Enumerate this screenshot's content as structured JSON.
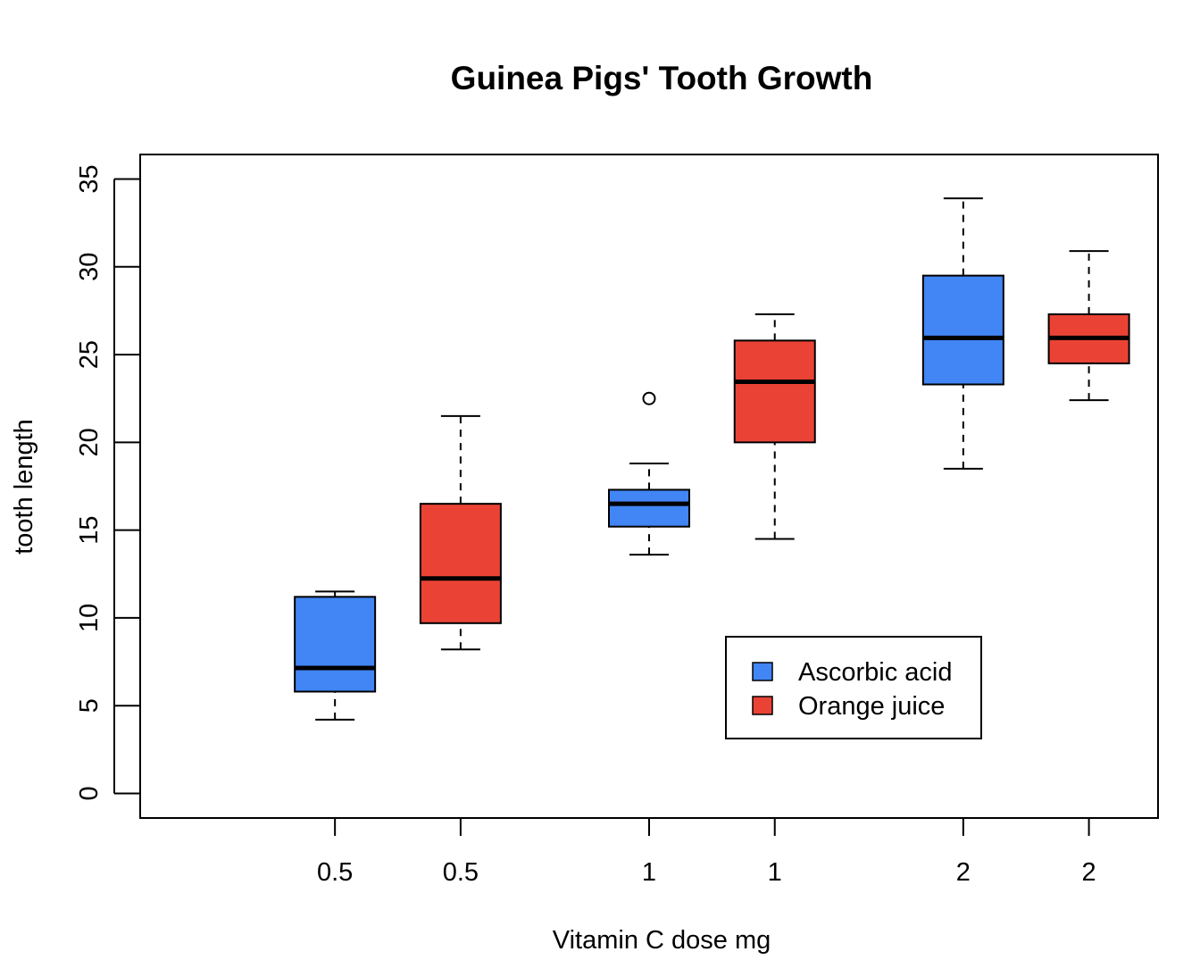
{
  "chart_data": {
    "type": "boxplot",
    "title": "Guinea Pigs' Tooth Growth",
    "xlabel": "Vitamin C dose mg",
    "ylabel": "tooth length",
    "ylim": [
      -1.4,
      36.4
    ],
    "y_ticks": [
      "0",
      "5",
      "10",
      "15",
      "20",
      "25",
      "30",
      "35"
    ],
    "categories": [
      "0.5",
      "0.5",
      "1",
      "1",
      "2",
      "2"
    ],
    "positions": [
      1,
      1.8,
      3,
      3.8,
      5,
      5.8
    ],
    "xlim": [
      -0.24,
      6.24
    ],
    "legend": {
      "position": "bottom-right"
    },
    "series": [
      {
        "name": "Ascorbic acid",
        "color": "#4285F4",
        "boxes": [
          {
            "category": "0.5",
            "whisker_low": 4.2,
            "q1": 5.8,
            "median": 7.15,
            "q3": 11.2,
            "whisker_high": 11.5,
            "outliers": []
          },
          {
            "category": "1",
            "whisker_low": 13.6,
            "q1": 15.2,
            "median": 16.5,
            "q3": 17.3,
            "whisker_high": 18.8,
            "outliers": [
              22.5
            ]
          },
          {
            "category": "2",
            "whisker_low": 18.5,
            "q1": 23.3,
            "median": 25.95,
            "q3": 29.5,
            "whisker_high": 33.9,
            "outliers": []
          }
        ]
      },
      {
        "name": "Orange juice",
        "color": "#EA4335",
        "boxes": [
          {
            "category": "0.5",
            "whisker_low": 8.2,
            "q1": 9.7,
            "median": 12.25,
            "q3": 16.5,
            "whisker_high": 21.5,
            "outliers": []
          },
          {
            "category": "1",
            "whisker_low": 14.5,
            "q1": 20.0,
            "median": 23.45,
            "q3": 25.8,
            "whisker_high": 27.3,
            "outliers": []
          },
          {
            "category": "2",
            "whisker_low": 22.4,
            "q1": 24.5,
            "median": 25.95,
            "q3": 27.3,
            "whisker_high": 30.9,
            "outliers": []
          }
        ]
      }
    ]
  }
}
